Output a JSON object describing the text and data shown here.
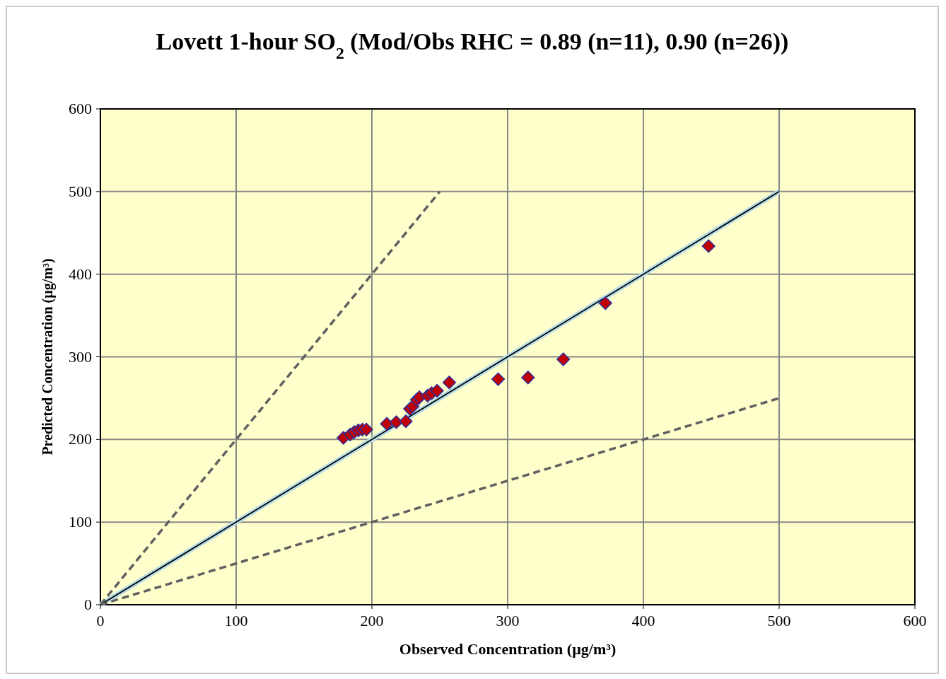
{
  "chart_data": {
    "type": "scatter",
    "title": "Lovett 1-hour SO$_{2}$ (Mod/Obs RHC = 0.89 (n=11), 0.90 (n=26))",
    "xlabel": "Observed Concentration (µg/m³)",
    "ylabel": "Predicted Concentration (µg/m³)",
    "xlim": [
      0,
      600
    ],
    "ylim": [
      0,
      600
    ],
    "xticks": [
      0,
      100,
      200,
      300,
      400,
      500,
      600
    ],
    "yticks": [
      0,
      100,
      200,
      300,
      400,
      500,
      600
    ],
    "grid": true,
    "series": [
      {
        "type": "line",
        "color": "#b7dde8",
        "line_style": "solid",
        "marker": "none",
        "x": [
          0,
          500
        ],
        "values": [
          0,
          500
        ]
      },
      {
        "type": "line",
        "color": "#000000",
        "line_style": "solid",
        "marker": "none",
        "x": [
          0,
          500
        ],
        "values": [
          0,
          500
        ]
      },
      {
        "type": "line",
        "color": "#606060",
        "line_style": "dashed",
        "marker": "none",
        "x": [
          0,
          250
        ],
        "values": [
          0,
          500
        ]
      },
      {
        "type": "line",
        "color": "#606060",
        "line_style": "dashed",
        "marker": "none",
        "x": [
          0,
          500
        ],
        "values": [
          0,
          250
        ]
      },
      {
        "color": "#c00000",
        "marker": "diamond",
        "x": [
          179,
          184,
          187,
          190,
          193,
          196,
          211,
          218,
          225,
          228,
          230,
          233,
          235,
          241,
          244,
          248,
          257,
          293,
          315,
          341,
          372,
          448
        ],
        "values": [
          202,
          206,
          209,
          211,
          212,
          212,
          219,
          221,
          222,
          237,
          240,
          248,
          251,
          253,
          256,
          259,
          269,
          273,
          275,
          297,
          365,
          434
        ]
      }
    ]
  }
}
